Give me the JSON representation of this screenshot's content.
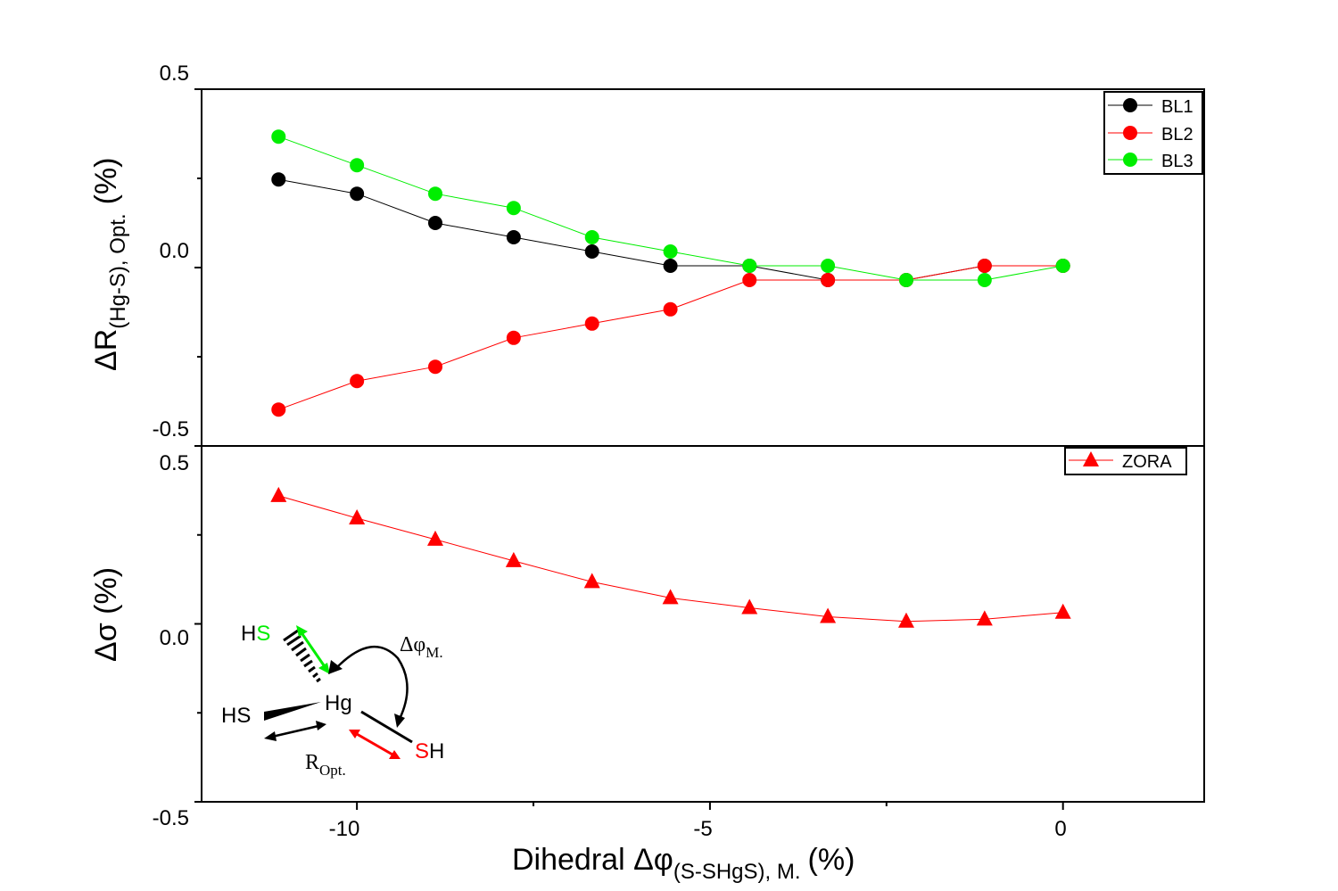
{
  "chart_data": [
    {
      "type": "line",
      "panel": "top",
      "title": "",
      "ylabel_main": "ΔR",
      "ylabel_sub": "(Hg-S), Opt.",
      "ylabel_unit": "(%)",
      "ylim": [
        -0.5,
        0.5
      ],
      "yticks": [
        "0.5",
        "0.0",
        "-0.5"
      ],
      "x": [
        -11.11,
        -10.0,
        -8.89,
        -7.78,
        -6.67,
        -5.56,
        -4.44,
        -3.33,
        -2.22,
        -1.11,
        0.0
      ],
      "series": [
        {
          "name": "BL1",
          "color": "#000000",
          "marker": "circle",
          "values": [
            0.247,
            0.207,
            0.125,
            0.085,
            0.045,
            0.005,
            0.005,
            -0.035,
            -0.035,
            0.005,
            0.005
          ]
        },
        {
          "name": "BL2",
          "color": "#ff0000",
          "marker": "circle",
          "values": [
            -0.398,
            -0.318,
            -0.278,
            -0.197,
            -0.157,
            -0.117,
            -0.035,
            -0.035,
            -0.035,
            0.005,
            0.005
          ]
        },
        {
          "name": "BL3",
          "color": "#00ee00",
          "marker": "circle",
          "values": [
            0.367,
            0.287,
            0.207,
            0.167,
            0.085,
            0.045,
            0.005,
            0.005,
            -0.035,
            -0.035,
            0.005
          ]
        }
      ],
      "legend": "top-right"
    },
    {
      "type": "line",
      "panel": "bottom",
      "title": "",
      "ylabel": "Δσ (%)",
      "ylim": [
        -0.5,
        0.5
      ],
      "yticks": [
        "0.5",
        "0.0",
        "-0.5"
      ],
      "x": [
        -11.11,
        -10.0,
        -8.89,
        -7.78,
        -6.67,
        -5.56,
        -4.44,
        -3.33,
        -2.22,
        -1.11,
        0.0
      ],
      "series": [
        {
          "name": "ZORA",
          "color": "#ff0000",
          "marker": "triangle",
          "values": [
            0.36,
            0.297,
            0.237,
            0.177,
            0.118,
            0.073,
            0.045,
            0.02,
            0.007,
            0.013,
            0.032
          ]
        }
      ],
      "legend": "top-right"
    }
  ],
  "xaxis": {
    "label_main": "Dihedral Δφ",
    "label_sub": "(S-SHgS), M.",
    "label_unit": "(%)",
    "xlim": [
      -12.2,
      2.0
    ],
    "major_ticks": [
      -10,
      -5,
      0
    ],
    "major_labels": [
      "-10",
      "-5",
      "0"
    ],
    "minor_ticks": [
      -7.5,
      -2.5
    ]
  },
  "inset": {
    "hs_green_prefix": "H",
    "hs_green_s": "S",
    "hg": "Hg",
    "hs_left": "HS",
    "sh_s": "S",
    "sh_h": "H",
    "dphi_main": "Δφ",
    "dphi_sub": "M.",
    "ropt_main": "R",
    "ropt_sub": "Opt."
  },
  "colors": {
    "black": "#000000",
    "red": "#ff0000",
    "green": "#00ee00"
  }
}
